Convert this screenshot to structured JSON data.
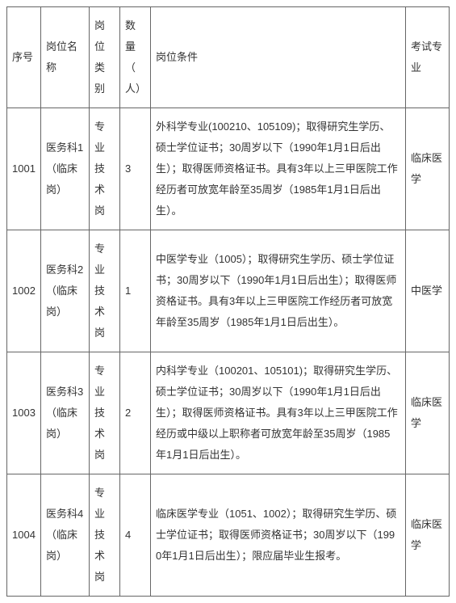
{
  "table": {
    "headers": {
      "seq": "序号",
      "name": "岗位名称",
      "type": "岗位类别",
      "qty": "数量（人）",
      "cond": "岗位条件",
      "exam": "考试专业"
    },
    "rows": [
      {
        "seq": "1001",
        "name": "医务科1（临床岗）",
        "type": "专业技术岗",
        "qty": "3",
        "cond": "外科学专业(100210、105109)；取得研究生学历、硕士学位证书；30周岁以下（1990年1月1日后出生）；取得医师资格证书。具有3年以上三甲医院工作经历者可放宽年龄至35周岁（1985年1月1日后出生）。",
        "exam": "临床医学"
      },
      {
        "seq": "1002",
        "name": "医务科2（临床岗）",
        "type": "专业技术岗",
        "qty": "1",
        "cond": "中医学专业（1005）；取得研究生学历、硕士学位证书；30周岁以下（1990年1月1日后出生）；取得医师资格证书。具有3年以上三甲医院工作经历者可放宽年龄至35周岁（1985年1月1日后出生）。",
        "exam": "中医学"
      },
      {
        "seq": "1003",
        "name": "医务科3（临床岗）",
        "type": "专业技术岗",
        "qty": "2",
        "cond": "内科学专业（100201、105101)；取得研究生学历、硕士学位证书；30周岁以下（1990年1月1日后出生）；取得医师资格证书。具有3年以上三甲医院工作经历或中级以上职称者可放宽年龄至35周岁（1985年1月1日后出生）。",
        "exam": "临床医学"
      },
      {
        "seq": "1004",
        "name": "医务科4（临床岗）",
        "type": "专业技术岗",
        "qty": "4",
        "cond": "临床医学专业（1051、1002）；取得研究生学历、硕士学位证书；取得医师资格证书；30周岁以下（1990年1月1日后出生）；限应届毕业生报考。",
        "exam": "临床医学"
      }
    ]
  },
  "style": {
    "border_color": "#666666",
    "text_color": "#333333",
    "background_color": "#ffffff",
    "font_size": 13,
    "line_height": 2.0,
    "col_widths": {
      "seq": 42,
      "name": 60,
      "type": 38,
      "qty": 38,
      "exam": 54
    }
  }
}
